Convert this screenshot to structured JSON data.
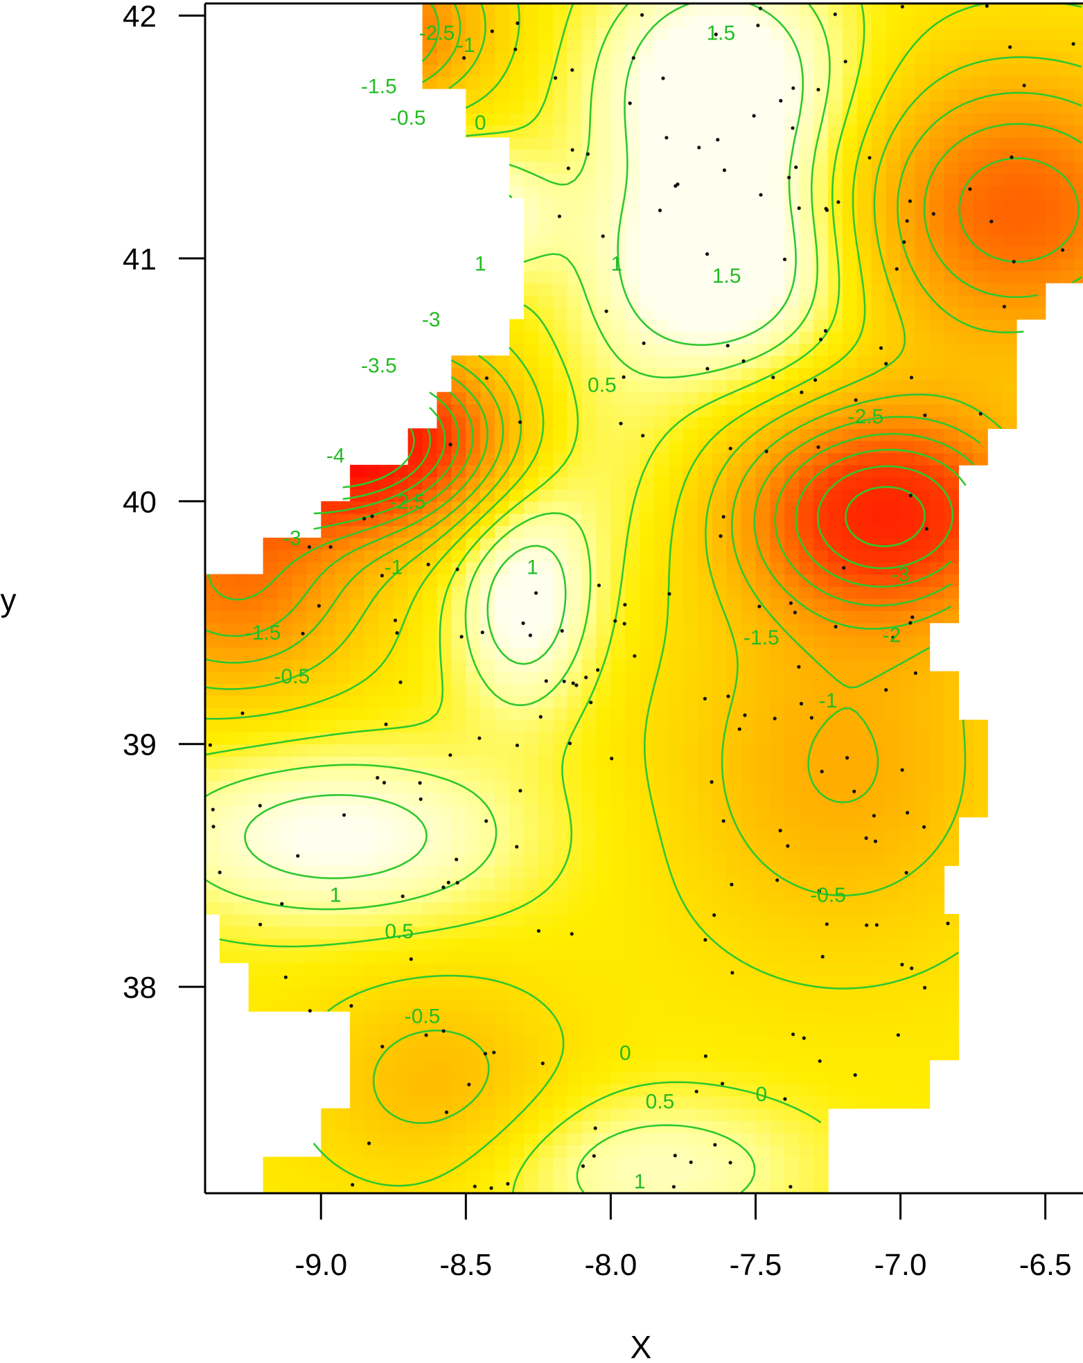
{
  "chart_data": {
    "type": "heatmap",
    "subtype": "interpolated surface with contour lines and sample points",
    "xlabel": "X",
    "ylabel": "y",
    "xlim": [
      -9.4,
      -6.37
    ],
    "ylim": [
      37.15,
      42.05
    ],
    "x_ticks": [
      -9.0,
      -8.5,
      -8.0,
      -7.5,
      -7.0,
      -6.5
    ],
    "y_ticks": [
      38,
      39,
      40,
      41,
      42
    ],
    "x_tick_labels": [
      "-9.0",
      "-8.5",
      "-8.0",
      "-7.5",
      "-7.0",
      "-6.5"
    ],
    "y_tick_labels": [
      "38",
      "39",
      "40",
      "41",
      "42"
    ],
    "color_scale": {
      "low": "#ff0000",
      "mid_low": "#ff8800",
      "mid": "#ffee00",
      "high": "#ffffee"
    },
    "contour_color": "#2ec72e",
    "contour_levels": [
      -4,
      -3.5,
      -3,
      -2.5,
      -2,
      -1.5,
      -1,
      -0.5,
      0,
      0.5,
      1,
      1.5
    ],
    "contour_labels": [
      {
        "text": "-2.5",
        "x": -8.6,
        "y": 41.9
      },
      {
        "text": "-1",
        "x": -8.5,
        "y": 41.85
      },
      {
        "text": "-1.5",
        "x": -8.8,
        "y": 41.68
      },
      {
        "text": "-0.5",
        "x": -8.7,
        "y": 41.55
      },
      {
        "text": "0",
        "x": -8.45,
        "y": 41.53
      },
      {
        "text": "1.5",
        "x": -7.62,
        "y": 41.9
      },
      {
        "text": "1",
        "x": -8.45,
        "y": 40.95
      },
      {
        "text": "1",
        "x": -7.98,
        "y": 40.95
      },
      {
        "text": "1.5",
        "x": -7.6,
        "y": 40.9
      },
      {
        "text": "-3",
        "x": -8.62,
        "y": 40.72
      },
      {
        "text": "-3.5",
        "x": -8.8,
        "y": 40.53
      },
      {
        "text": "-4",
        "x": -8.95,
        "y": 40.16
      },
      {
        "text": "-2.5",
        "x": -8.7,
        "y": 39.97
      },
      {
        "text": "-3",
        "x": -9.1,
        "y": 39.82
      },
      {
        "text": "-1",
        "x": -8.75,
        "y": 39.7
      },
      {
        "text": "-1.5",
        "x": -9.2,
        "y": 39.43
      },
      {
        "text": "-0.5",
        "x": -9.1,
        "y": 39.25
      },
      {
        "text": "0.5",
        "x": -8.03,
        "y": 40.45
      },
      {
        "text": "1",
        "x": -8.27,
        "y": 39.7
      },
      {
        "text": "-2.5",
        "x": -7.12,
        "y": 40.32
      },
      {
        "text": "-3",
        "x": -7.0,
        "y": 39.67
      },
      {
        "text": "-2",
        "x": -7.03,
        "y": 39.42
      },
      {
        "text": "-1.5",
        "x": -7.48,
        "y": 39.41
      },
      {
        "text": "-1",
        "x": -7.25,
        "y": 39.15
      },
      {
        "text": "-0.5",
        "x": -7.25,
        "y": 38.35
      },
      {
        "text": "1",
        "x": -8.95,
        "y": 38.35
      },
      {
        "text": "0.5",
        "x": -8.73,
        "y": 38.2
      },
      {
        "text": "-0.5",
        "x": -8.65,
        "y": 37.85
      },
      {
        "text": "0",
        "x": -7.95,
        "y": 37.7
      },
      {
        "text": "0",
        "x": -7.48,
        "y": 37.53
      },
      {
        "text": "0.5",
        "x": -7.83,
        "y": 37.5
      },
      {
        "text": "1",
        "x": -7.9,
        "y": 37.17
      }
    ],
    "sample_points_count": 230
  }
}
